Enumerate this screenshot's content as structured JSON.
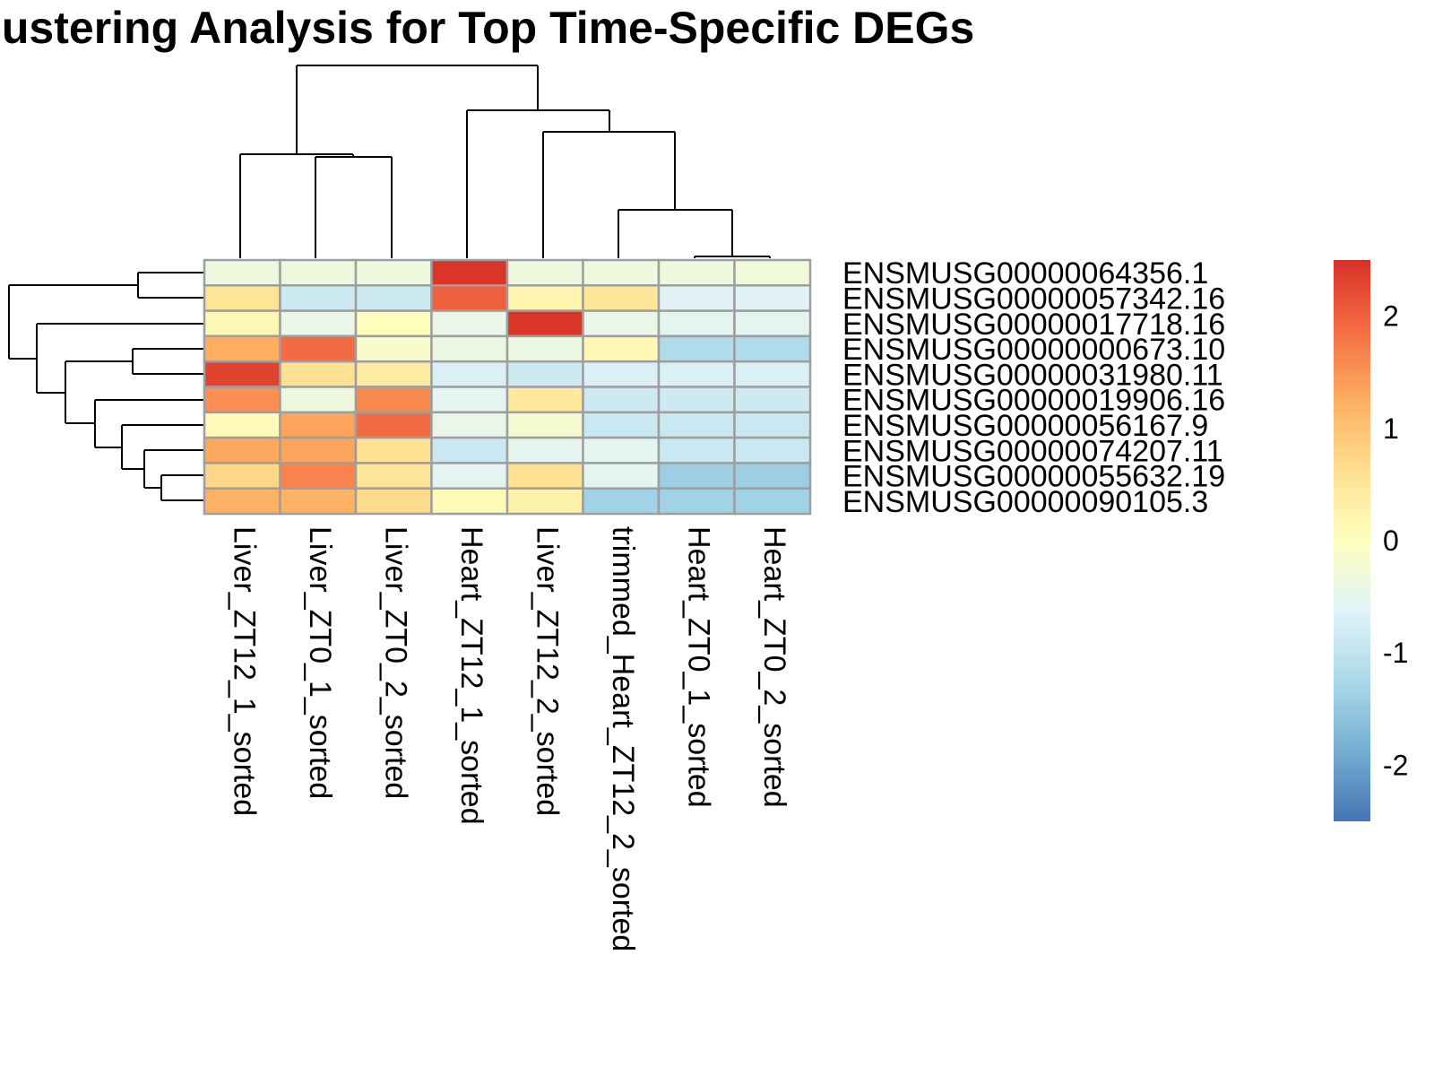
{
  "chart_data": {
    "type": "heatmap",
    "title": "lustering Analysis for Top Time-Specific DEGs",
    "columns": [
      "Liver_ZT12_1_sorted",
      "Liver_ZT0_1_sorted",
      "Liver_ZT0_2_sorted",
      "Heart_ZT12_1_sorted",
      "Liver_ZT12_2_sorted",
      "trimmed_Heart_ZT12_2_sorted",
      "Heart_ZT0_1_sorted",
      "Heart_ZT0_2_sorted"
    ],
    "rows": [
      "ENSMUSG00000064356.1",
      "ENSMUSG00000057342.16",
      "ENSMUSG00000017718.16",
      "ENSMUSG00000000673.10",
      "ENSMUSG00000031980.11",
      "ENSMUSG00000019906.16",
      "ENSMUSG00000056167.9",
      "ENSMUSG00000074207.11",
      "ENSMUSG00000055632.19",
      "ENSMUSG00000090105.3"
    ],
    "values": [
      [
        -0.35,
        -0.35,
        -0.35,
        2.45,
        -0.35,
        -0.35,
        -0.35,
        -0.3
      ],
      [
        0.55,
        -0.85,
        -0.85,
        2.0,
        0.2,
        0.5,
        -0.6,
        -0.6
      ],
      [
        0.15,
        -0.45,
        0.05,
        -0.45,
        2.45,
        -0.45,
        -0.55,
        -0.55
      ],
      [
        1.25,
        1.9,
        -0.15,
        -0.4,
        -0.4,
        0.15,
        -1.2,
        -1.2
      ],
      [
        2.3,
        0.6,
        0.4,
        -0.7,
        -0.85,
        -0.7,
        -0.7,
        -0.7
      ],
      [
        1.55,
        -0.35,
        1.6,
        -0.55,
        0.45,
        -0.85,
        -0.85,
        -0.85
      ],
      [
        0.1,
        1.35,
        1.9,
        -0.45,
        -0.2,
        -0.9,
        -0.9,
        -0.9
      ],
      [
        1.3,
        1.35,
        0.6,
        -0.9,
        -0.5,
        -0.55,
        -0.9,
        -0.9
      ],
      [
        0.75,
        1.65,
        0.55,
        -0.55,
        0.6,
        -0.55,
        -1.4,
        -1.4
      ],
      [
        1.2,
        1.2,
        0.7,
        0.1,
        0.25,
        -1.35,
        -1.35,
        -1.35
      ]
    ],
    "legend": {
      "ticks": [
        2,
        1,
        0,
        -1,
        -2
      ],
      "tick_labels": [
        "2",
        "1",
        "0",
        "-1",
        "-2"
      ],
      "range": [
        -2.5,
        2.5
      ],
      "low_color": "#4575b4",
      "mid_color": "#ffffbf",
      "high_color": "#d73027"
    },
    "cell_border_color": "#9e9e9e"
  }
}
